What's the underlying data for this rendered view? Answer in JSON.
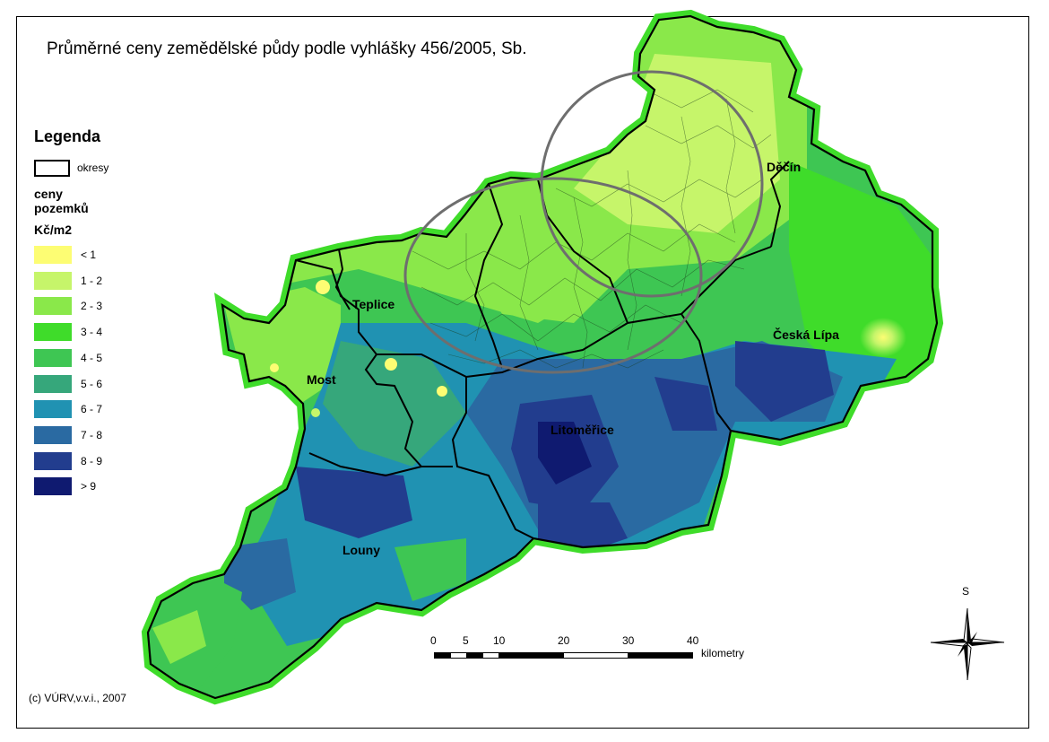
{
  "title": "Průměrné ceny zemědělské půdy podle vyhlášky 456/2005, Sb.",
  "legend": {
    "heading": "Legenda",
    "okresy_label": "okresy",
    "subtitle": "ceny pozemků",
    "unit": "Kč/m2",
    "classes": [
      {
        "label": "< 1",
        "color": "#fdfd73"
      },
      {
        "label": "1 - 2",
        "color": "#c6f56a"
      },
      {
        "label": "2 - 3",
        "color": "#8ae84a"
      },
      {
        "label": "3 - 4",
        "color": "#3fdc2a"
      },
      {
        "label": "4 - 5",
        "color": "#3ec653"
      },
      {
        "label": "5 - 6",
        "color": "#36a77b"
      },
      {
        "label": "6 - 7",
        "color": "#2092b2"
      },
      {
        "label": "7 - 8",
        "color": "#2a6aa2"
      },
      {
        "label": "8 - 9",
        "color": "#223d8e"
      },
      {
        "label": "> 9",
        "color": "#0f1a70"
      }
    ]
  },
  "districts": {
    "decin": "Děčín",
    "teplice": "Teplice",
    "ceska_lipa": "Česká Lípa",
    "most": "Most",
    "litomerice": "Litoměřice",
    "louny": "Louny"
  },
  "scale_bar": {
    "ticks": [
      "0",
      "5",
      "10",
      "20",
      "30",
      "40"
    ],
    "unit": "kilometry"
  },
  "north_arrow": {
    "label": "S"
  },
  "copyright": "(c) VÚRV,v.v.i., 2007"
}
